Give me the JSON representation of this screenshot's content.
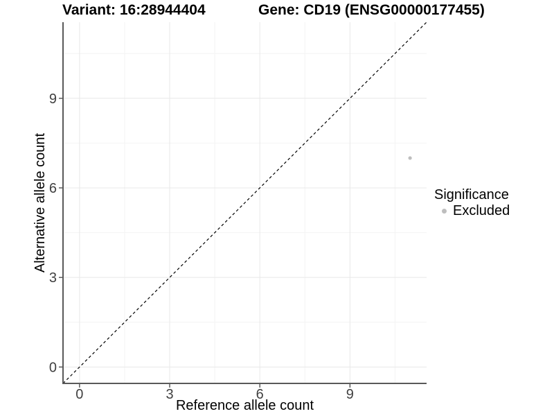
{
  "titles": {
    "variant": "Variant: 16:28944404",
    "gene": "Gene: CD19 (ENSG00000177455)"
  },
  "chart_data": {
    "type": "scatter",
    "xlabel": "Reference allele count",
    "ylabel": "Alternative allele count",
    "xlim": [
      -0.55,
      11.55
    ],
    "ylim": [
      -0.55,
      11.55
    ],
    "x_ticks": [
      0,
      3,
      6,
      9
    ],
    "y_ticks": [
      0,
      3,
      6,
      9
    ],
    "x_minor_gridlines": [
      1.5,
      4.5,
      7.5,
      10.5
    ],
    "y_minor_gridlines": [
      1.5,
      4.5,
      7.5,
      10.5
    ],
    "grid": "on",
    "legend_position": "right",
    "points": [
      {
        "x": 11,
        "y": 7,
        "series": "Excluded"
      }
    ],
    "reference_line": {
      "type": "identity",
      "slope": 1,
      "intercept": 0,
      "style": "dashed"
    }
  },
  "legend": {
    "title": "Significance",
    "items": [
      {
        "label": "Excluded",
        "color": "#bebebe"
      }
    ]
  },
  "colors": {
    "background": "#ffffff",
    "grid_major": "#e8e8e8",
    "grid_minor": "#f4f4f4",
    "axis_line": "#595959",
    "tick_mark": "#333333",
    "tick_label": "#404040",
    "point": "#bebebe",
    "reference_line": "#000000",
    "title_text": "#000000"
  }
}
